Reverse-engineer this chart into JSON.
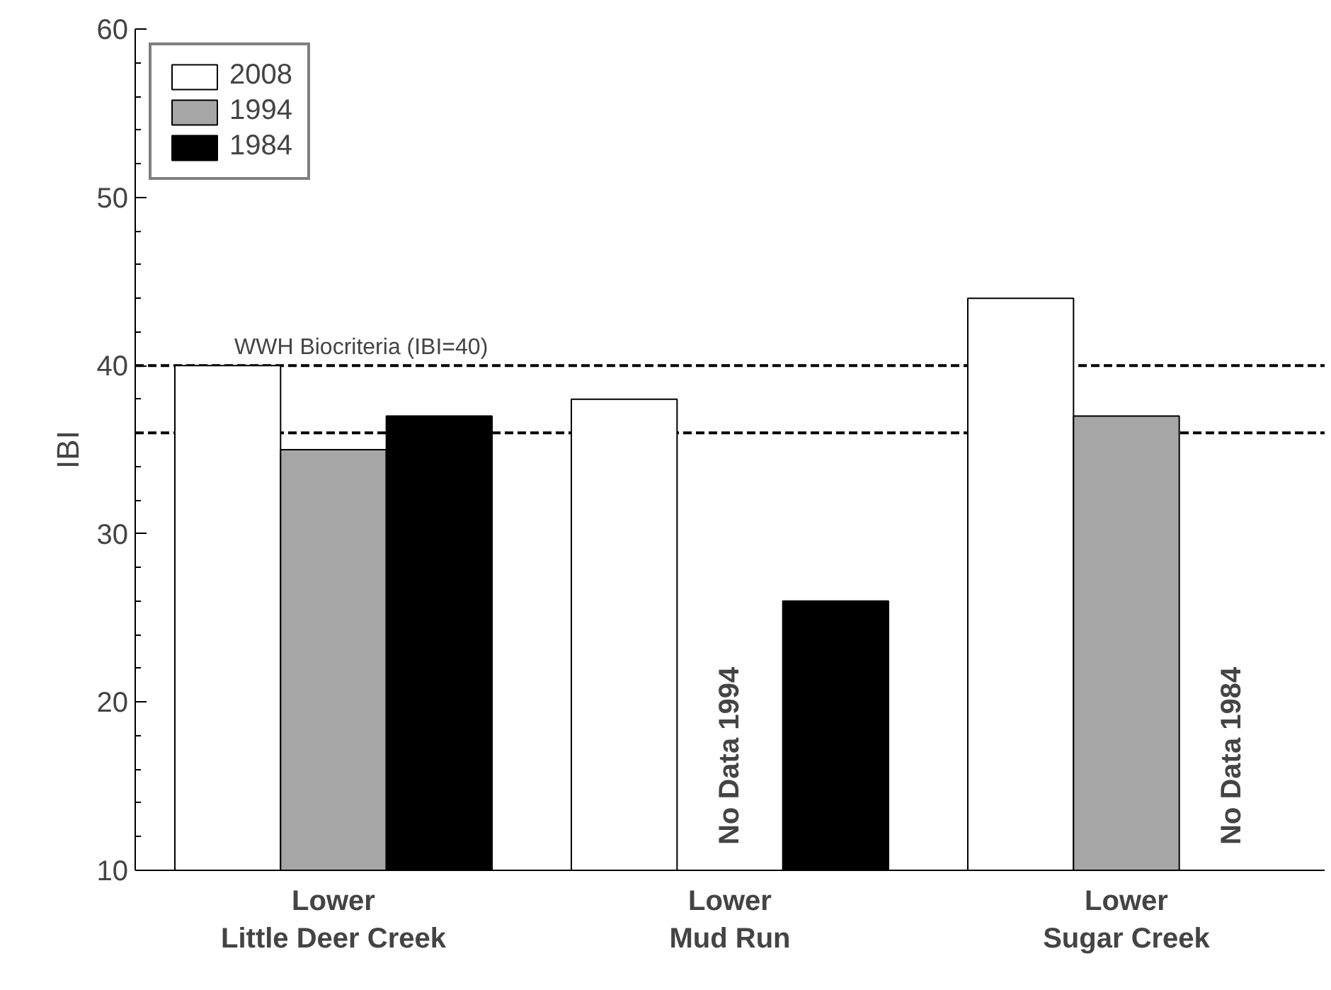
{
  "chart_data": {
    "type": "bar",
    "ylabel": "IBI",
    "categories": [
      "Lower\nLittle Deer Creek",
      "Lower\nMud Run",
      "Lower\nSugar Creek"
    ],
    "series": [
      {
        "name": "2008",
        "color": "#ffffff",
        "values": [
          40,
          38,
          44
        ]
      },
      {
        "name": "1994",
        "color": "#a6a6a6",
        "values": [
          35,
          null,
          37
        ]
      },
      {
        "name": "1984",
        "color": "#000000",
        "values": [
          37,
          26,
          null
        ]
      }
    ],
    "ylim": [
      10,
      60
    ],
    "yticks": [
      10,
      20,
      30,
      40,
      50,
      60
    ],
    "ref_lines": [
      {
        "axis": "y",
        "value": 40,
        "label": "WWH Biocriteria (IBI=40)",
        "line_style": "dashed"
      },
      {
        "axis": "y",
        "value": 36,
        "label": null,
        "line_style": "dashed"
      }
    ],
    "annotations": [
      "No Data 1994",
      "No Data 1984"
    ],
    "legend": "top left",
    "grid": false
  }
}
